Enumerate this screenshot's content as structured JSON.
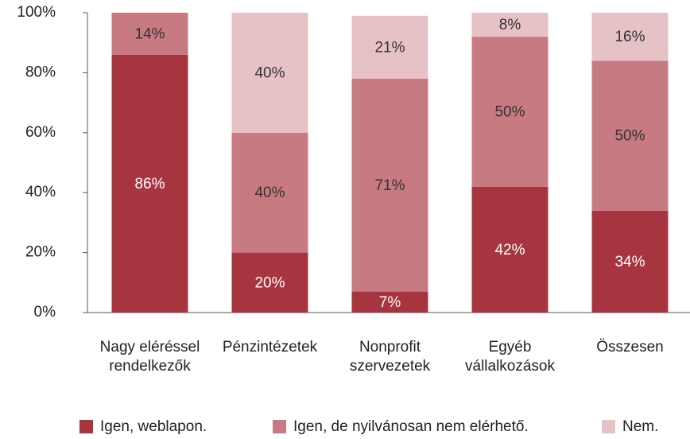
{
  "chart_data": {
    "type": "stacked-bar",
    "categories": [
      "Nagy eléréssel\nrendelkezők",
      "Pénzintézetek",
      "Nonprofit\nszervezetek",
      "Egyéb\nvállalkozások",
      "Összesen"
    ],
    "series": [
      {
        "name": "Igen, weblapon.",
        "color": "#a63540",
        "values": [
          86,
          20,
          7,
          42,
          34
        ],
        "value_labels": [
          "86%",
          "20%",
          "7%",
          "42%",
          "34%"
        ]
      },
      {
        "name": "Igen, de nyilvánosan nem elérhető.",
        "color": "#c77a82",
        "values": [
          14,
          40,
          71,
          50,
          50
        ],
        "value_labels": [
          "14%",
          "40%",
          "71%",
          "50%",
          "50%"
        ]
      },
      {
        "name": "Nem.",
        "color": "#e6c2c6",
        "values": [
          0,
          40,
          21,
          8,
          16
        ],
        "value_labels": [
          null,
          "40%",
          "21%",
          "8%",
          "16%"
        ]
      }
    ],
    "ylim": [
      0,
      100
    ],
    "yticks": [
      {
        "value": 0,
        "label": "0%"
      },
      {
        "value": 20,
        "label": "20%"
      },
      {
        "value": 40,
        "label": "40%"
      },
      {
        "value": 60,
        "label": "60%"
      },
      {
        "value": 80,
        "label": "80%"
      },
      {
        "value": 100,
        "label": "100%"
      }
    ],
    "legend": "bottom"
  }
}
